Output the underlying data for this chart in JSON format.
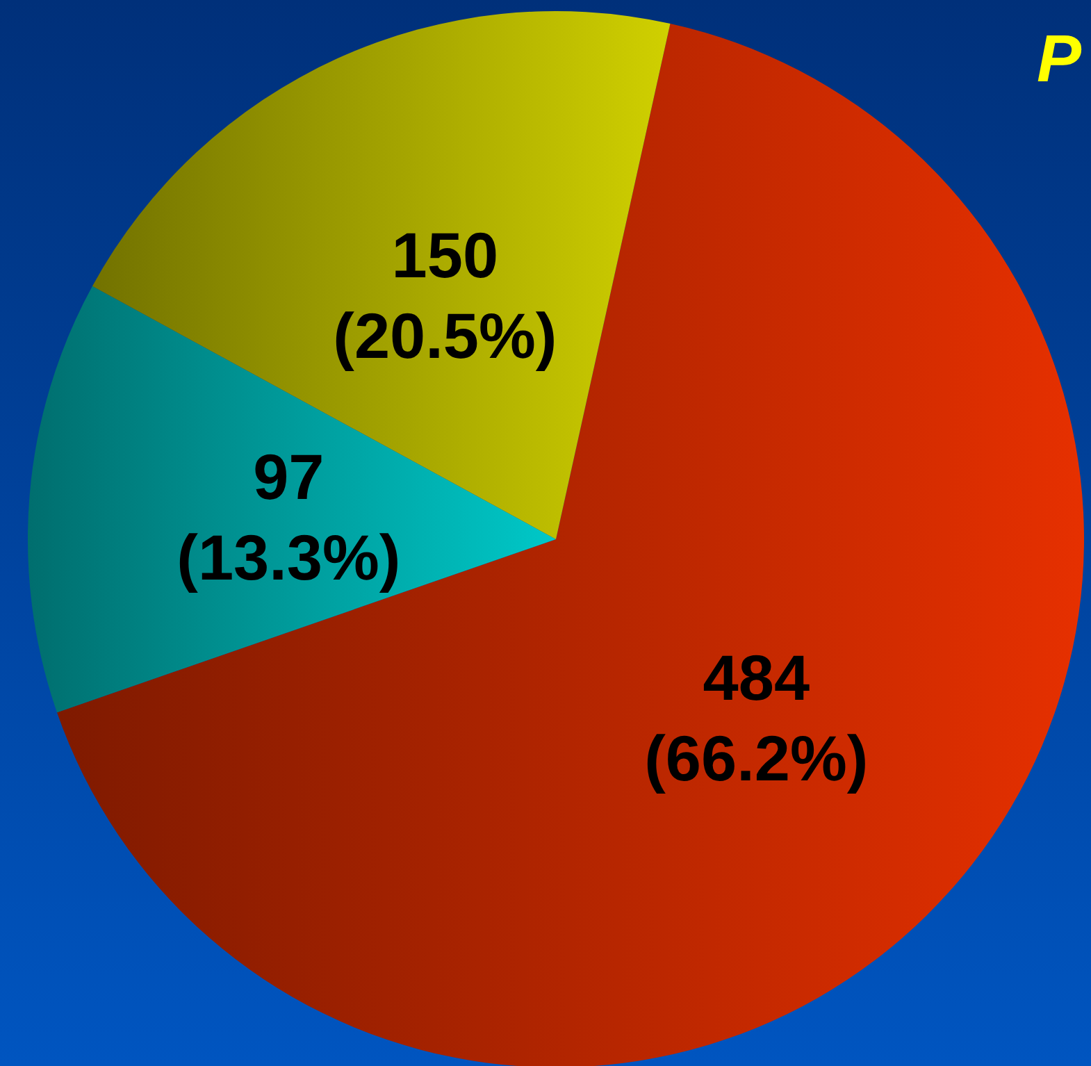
{
  "chart_data": {
    "type": "pie",
    "title": "P",
    "categories": [
      null,
      null,
      null
    ],
    "values": [
      484,
      97,
      150
    ],
    "colors": [
      "#e63000",
      "#00c8c8",
      "#d0d000"
    ],
    "value_labels": [
      "484\n(66.2%)",
      "97\n(13.3%)",
      "150\n(20.5%)"
    ]
  }
}
